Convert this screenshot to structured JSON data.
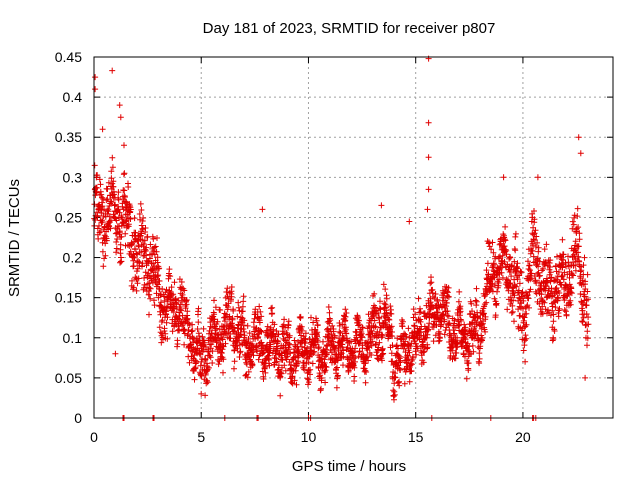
{
  "chart_data": {
    "type": "scatter",
    "title": "Day 181 of 2023, SRMTID for receiver p807",
    "xlabel": "GPS time / hours",
    "ylabel": "SRMTID / TECUs",
    "xlim": [
      0,
      24.2
    ],
    "ylim": [
      0,
      0.45
    ],
    "xticks": [
      0,
      5,
      10,
      15,
      20
    ],
    "xtick_labels": [
      "0",
      "5",
      "10",
      "15",
      "20"
    ],
    "yticks": [
      0,
      0.05,
      0.1,
      0.15,
      0.2,
      0.25,
      0.3,
      0.35,
      0.4,
      0.45
    ],
    "ytick_labels": [
      "0",
      "0.05",
      "0.1",
      "0.15",
      "0.2",
      "0.25",
      "0.3",
      "0.35",
      "0.4",
      "0.45"
    ],
    "grid": true,
    "marker": "+",
    "color": "#e00000",
    "outliers": [
      {
        "x": 0.05,
        "y": 0.425
      },
      {
        "x": 0.05,
        "y": 0.41
      },
      {
        "x": 0.85,
        "y": 0.433
      },
      {
        "x": 1.2,
        "y": 0.39
      },
      {
        "x": 1.25,
        "y": 0.375
      },
      {
        "x": 0.4,
        "y": 0.36
      },
      {
        "x": 1.4,
        "y": 0.34
      },
      {
        "x": 15.6,
        "y": 0.448
      },
      {
        "x": 15.6,
        "y": 0.368
      },
      {
        "x": 15.6,
        "y": 0.325
      },
      {
        "x": 15.6,
        "y": 0.285
      },
      {
        "x": 15.55,
        "y": 0.26
      },
      {
        "x": 19.1,
        "y": 0.3
      },
      {
        "x": 22.6,
        "y": 0.35
      },
      {
        "x": 22.7,
        "y": 0.33
      },
      {
        "x": 20.7,
        "y": 0.3
      },
      {
        "x": 7.85,
        "y": 0.26
      },
      {
        "x": 13.4,
        "y": 0.265
      },
      {
        "x": 14.7,
        "y": 0.245
      },
      {
        "x": 1.0,
        "y": 0.08
      },
      {
        "x": 22.9,
        "y": 0.05
      },
      {
        "x": 20.1,
        "y": 0.07
      },
      {
        "x": 5.0,
        "y": 0.03
      }
    ],
    "baseline_points": [
      {
        "x": 1.35,
        "y": 0
      },
      {
        "x": 1.4,
        "y": 0
      },
      {
        "x": 2.75,
        "y": 0
      },
      {
        "x": 2.8,
        "y": 0
      },
      {
        "x": 6.1,
        "y": 0
      },
      {
        "x": 7.6,
        "y": 0
      },
      {
        "x": 7.65,
        "y": 0
      },
      {
        "x": 10.0,
        "y": 0
      },
      {
        "x": 10.1,
        "y": 0
      },
      {
        "x": 15.75,
        "y": 0
      },
      {
        "x": 18.5,
        "y": 0
      },
      {
        "x": 20.45,
        "y": 0
      },
      {
        "x": 20.5,
        "y": 0
      },
      {
        "x": 20.6,
        "y": 0
      }
    ],
    "series": [
      {
        "name": "SRMTID",
        "trend": [
          {
            "x": 0.0,
            "y": 0.26
          },
          {
            "x": 0.5,
            "y": 0.25
          },
          {
            "x": 1.0,
            "y": 0.26
          },
          {
            "x": 1.5,
            "y": 0.24
          },
          {
            "x": 2.0,
            "y": 0.21
          },
          {
            "x": 2.5,
            "y": 0.2
          },
          {
            "x": 3.0,
            "y": 0.16
          },
          {
            "x": 3.5,
            "y": 0.13
          },
          {
            "x": 4.0,
            "y": 0.14
          },
          {
            "x": 4.5,
            "y": 0.1
          },
          {
            "x": 5.0,
            "y": 0.07
          },
          {
            "x": 5.5,
            "y": 0.1
          },
          {
            "x": 6.0,
            "y": 0.11
          },
          {
            "x": 6.5,
            "y": 0.12
          },
          {
            "x": 7.0,
            "y": 0.09
          },
          {
            "x": 7.5,
            "y": 0.1
          },
          {
            "x": 8.0,
            "y": 0.09
          },
          {
            "x": 8.5,
            "y": 0.09
          },
          {
            "x": 9.0,
            "y": 0.08
          },
          {
            "x": 9.5,
            "y": 0.08
          },
          {
            "x": 10.0,
            "y": 0.09
          },
          {
            "x": 10.5,
            "y": 0.08
          },
          {
            "x": 11.0,
            "y": 0.09
          },
          {
            "x": 11.5,
            "y": 0.09
          },
          {
            "x": 12.0,
            "y": 0.09
          },
          {
            "x": 12.5,
            "y": 0.09
          },
          {
            "x": 13.0,
            "y": 0.1
          },
          {
            "x": 13.5,
            "y": 0.13
          },
          {
            "x": 14.0,
            "y": 0.07
          },
          {
            "x": 14.5,
            "y": 0.08
          },
          {
            "x": 15.0,
            "y": 0.1
          },
          {
            "x": 15.5,
            "y": 0.12
          },
          {
            "x": 16.0,
            "y": 0.14
          },
          {
            "x": 16.5,
            "y": 0.12
          },
          {
            "x": 17.0,
            "y": 0.1
          },
          {
            "x": 17.5,
            "y": 0.1
          },
          {
            "x": 18.0,
            "y": 0.11
          },
          {
            "x": 18.5,
            "y": 0.18
          },
          {
            "x": 19.0,
            "y": 0.19
          },
          {
            "x": 19.5,
            "y": 0.18
          },
          {
            "x": 20.0,
            "y": 0.13
          },
          {
            "x": 20.5,
            "y": 0.21
          },
          {
            "x": 21.0,
            "y": 0.16
          },
          {
            "x": 21.5,
            "y": 0.16
          },
          {
            "x": 22.0,
            "y": 0.17
          },
          {
            "x": 22.5,
            "y": 0.21
          },
          {
            "x": 23.0,
            "y": 0.14
          }
        ],
        "spread": [
          {
            "x": 0.0,
            "y": 0.05
          },
          {
            "x": 2.0,
            "y": 0.05
          },
          {
            "x": 4.0,
            "y": 0.04
          },
          {
            "x": 6.0,
            "y": 0.045
          },
          {
            "x": 8.0,
            "y": 0.035
          },
          {
            "x": 12.0,
            "y": 0.03
          },
          {
            "x": 13.5,
            "y": 0.045
          },
          {
            "x": 15.0,
            "y": 0.035
          },
          {
            "x": 17.0,
            "y": 0.035
          },
          {
            "x": 19.0,
            "y": 0.045
          },
          {
            "x": 21.0,
            "y": 0.05
          },
          {
            "x": 23.0,
            "y": 0.05
          }
        ],
        "x_start": 0.0,
        "x_end": 23.05,
        "sample_step": 0.0083
      }
    ]
  }
}
